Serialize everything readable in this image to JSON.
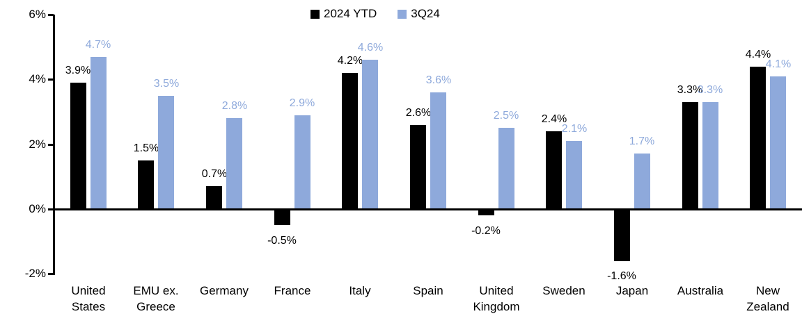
{
  "chart_data": {
    "type": "bar",
    "categories": [
      "United\nStates",
      "EMU ex.\nGreece",
      "Germany",
      "France",
      "Italy",
      "Spain",
      "United\nKingdom",
      "Sweden",
      "Japan",
      "Australia",
      "New\nZealand"
    ],
    "series": [
      {
        "name": "2024 YTD",
        "color": "#000000",
        "values": [
          3.9,
          1.5,
          0.7,
          -0.5,
          4.2,
          2.6,
          -0.2,
          2.4,
          -1.6,
          3.3,
          4.4
        ]
      },
      {
        "name": "3Q24",
        "color": "#8EA9DB",
        "values": [
          4.7,
          3.5,
          2.8,
          2.9,
          4.6,
          3.6,
          2.5,
          2.1,
          1.7,
          3.3,
          4.1
        ]
      }
    ],
    "title": "",
    "xlabel": "",
    "ylabel": "",
    "ylim": [
      -2,
      6
    ],
    "y_tick_step": 2,
    "y_tick_suffix": "%",
    "y_tick_labels": [
      "6%",
      "4%",
      "2%",
      "0%",
      "-2%"
    ],
    "data_label_suffix": "%",
    "grid": "off",
    "legend_position": "top-center"
  },
  "colors": {
    "series_2024_ytd": "#000000",
    "series_3q24": "#8EA9DB",
    "axis": "#000000",
    "background": "#ffffff"
  }
}
